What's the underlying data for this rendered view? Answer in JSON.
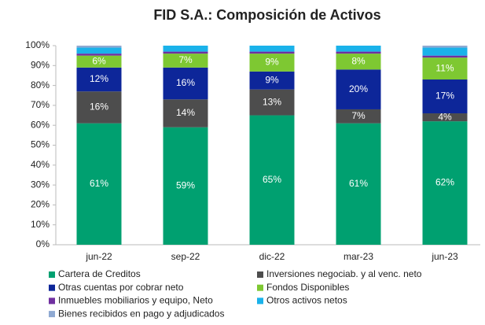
{
  "chart_data": {
    "type": "stacked_bar",
    "title": "FID S.A.: Composición de Activos",
    "categories": [
      "jun-22",
      "sep-22",
      "dic-22",
      "mar-23",
      "jun-23"
    ],
    "series": [
      {
        "name": "Cartera de Creditos",
        "color": "#00a070",
        "values": [
          61,
          59,
          65,
          61,
          62
        ],
        "value_labels": [
          "61%",
          "59%",
          "65%",
          "61%",
          "62%"
        ]
      },
      {
        "name": "Inversiones negociab. y al venc. neto",
        "color": "#4d4d4d",
        "values": [
          16,
          14,
          13,
          7,
          4
        ],
        "value_labels": [
          "16%",
          "14%",
          "13%",
          "7%",
          "4%"
        ]
      },
      {
        "name": "Otras cuentas por cobrar neto",
        "color": "#0d2699",
        "values": [
          12,
          16,
          9,
          20,
          17
        ],
        "value_labels": [
          "12%",
          "16%",
          "9%",
          "20%",
          "17%"
        ]
      },
      {
        "name": "Fondos Disponibles",
        "color": "#7ec832",
        "values": [
          6,
          7,
          9,
          8,
          11
        ],
        "value_labels": [
          "6%",
          "7%",
          "9%",
          "8%",
          "11%"
        ]
      },
      {
        "name": "Inmuebles mobiliarios y equipo, Neto",
        "color": "#7030a0",
        "values": [
          1,
          1,
          1,
          1,
          1
        ]
      },
      {
        "name": "Otros activos netos",
        "color": "#1ab2ea",
        "values": [
          3,
          3,
          3,
          3,
          4
        ]
      },
      {
        "name": "Bienes recibidos en pago y adjudicados",
        "color": "#8fa9d2",
        "values": [
          1,
          0,
          0,
          0,
          1
        ]
      }
    ],
    "ylim": [
      0,
      100
    ],
    "yticks": [
      {
        "value": 0,
        "label": "0%"
      },
      {
        "value": 10,
        "label": "10%"
      },
      {
        "value": 20,
        "label": "20%"
      },
      {
        "value": 30,
        "label": "30%"
      },
      {
        "value": 40,
        "label": "40%"
      },
      {
        "value": 50,
        "label": "50%"
      },
      {
        "value": 60,
        "label": "60%"
      },
      {
        "value": 70,
        "label": "70%"
      },
      {
        "value": 80,
        "label": "80%"
      },
      {
        "value": 90,
        "label": "90%"
      },
      {
        "value": 100,
        "label": "100%"
      }
    ],
    "grid": false
  }
}
